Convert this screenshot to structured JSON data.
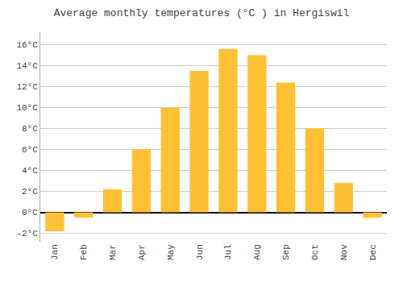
{
  "chart_data": {
    "type": "bar",
    "title": "Average monthly temperatures (°C ) in Hergiswil",
    "categories": [
      "Jan",
      "Feb",
      "Mar",
      "Apr",
      "May",
      "Jun",
      "Jul",
      "Aug",
      "Sep",
      "Oct",
      "Nov",
      "Dec"
    ],
    "values": [
      -1.8,
      -0.5,
      2.2,
      6.0,
      10.0,
      13.5,
      15.6,
      15.0,
      12.4,
      8.0,
      2.8,
      -0.5
    ],
    "color": "#FFC033",
    "ylim": [
      -2.8,
      17.2
    ],
    "yticks": [
      {
        "value": -2,
        "label": "-2°C"
      },
      {
        "value": 0,
        "label": "0°C"
      },
      {
        "value": 2,
        "label": "2°C"
      },
      {
        "value": 4,
        "label": "4°C"
      },
      {
        "value": 6,
        "label": "6°C"
      },
      {
        "value": 8,
        "label": "8°C"
      },
      {
        "value": 10,
        "label": "10°C"
      },
      {
        "value": 12,
        "label": "12°C"
      },
      {
        "value": 14,
        "label": "14°C"
      },
      {
        "value": 16,
        "label": "16°C"
      }
    ],
    "grid": true
  }
}
